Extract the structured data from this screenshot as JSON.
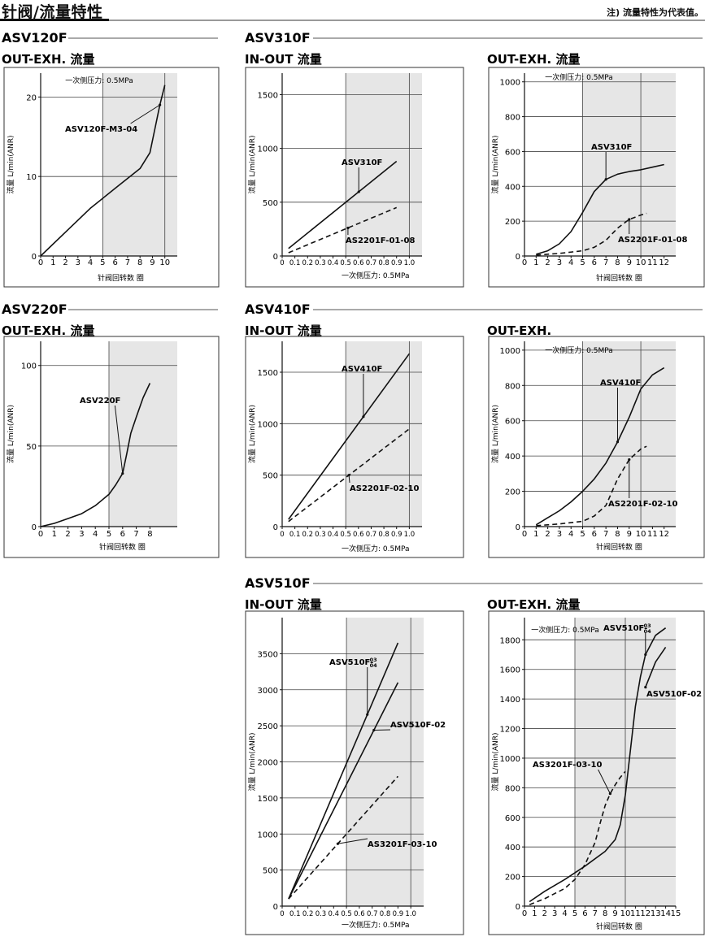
{
  "page": {
    "title": "针阀/流量特性",
    "note": "注) 流量特性为代表值。"
  },
  "chart_data": [
    {
      "type": "line",
      "model": "ASV120F",
      "title": "OUT-EXH. 流量",
      "xlabel": "针阀回转数 圈",
      "ylabel": "流量 L/min(ANR)",
      "pressure_note": "一次侧压力: 0.5MPa",
      "xlim": [
        0,
        11
      ],
      "ylim": [
        0,
        23
      ],
      "xticks": [
        0,
        1,
        2,
        3,
        4,
        5,
        6,
        7,
        8,
        9,
        10
      ],
      "yticks": [
        0,
        10,
        20
      ],
      "grid_x": [
        5,
        10
      ],
      "grid_y": [
        10,
        20
      ],
      "shade_from": 5,
      "series": [
        {
          "name": "ASV120F-M3-04",
          "style": "solid",
          "x": [
            0,
            2,
            4,
            6,
            8,
            8.8,
            9.2,
            9.6,
            10
          ],
          "y": [
            0,
            3,
            6,
            8.5,
            11,
            13,
            16,
            19,
            21.5
          ]
        }
      ]
    },
    {
      "type": "line",
      "model": "ASV310F",
      "title": "IN-OUT 流量",
      "xlabel": "一次侧压力: 0.5MPa",
      "ylabel": "流量 L/min(ANR)",
      "xlim": [
        0,
        1.1
      ],
      "ylim": [
        0,
        1700
      ],
      "xticks": [
        0,
        0.1,
        0.2,
        0.3,
        0.4,
        0.5,
        0.6,
        0.7,
        0.8,
        0.9,
        1.0
      ],
      "yticks": [
        0,
        500,
        1000,
        1500
      ],
      "grid_x": [
        0.5,
        1.0
      ],
      "grid_y": [
        500,
        1000,
        1500
      ],
      "shade_from": 0.5,
      "series": [
        {
          "name": "ASV310F",
          "style": "solid",
          "x": [
            0.05,
            0.9
          ],
          "y": [
            70,
            880
          ]
        },
        {
          "name": "AS2201F-01-08",
          "style": "dashed",
          "x": [
            0.05,
            0.9
          ],
          "y": [
            30,
            450
          ]
        }
      ]
    },
    {
      "type": "line",
      "model": "ASV310F",
      "title": "OUT-EXH. 流量",
      "xlabel": "针阀回转数 圈",
      "ylabel": "流量 L/min(ANR)",
      "pressure_note": "一次侧压力: 0.5MPa",
      "xlim": [
        0,
        13
      ],
      "ylim": [
        0,
        1050
      ],
      "xticks": [
        0,
        1,
        2,
        3,
        4,
        5,
        6,
        7,
        8,
        9,
        10,
        11,
        12
      ],
      "yticks": [
        0,
        200,
        400,
        600,
        800,
        1000
      ],
      "grid_x": [
        5,
        10
      ],
      "grid_y": [
        200,
        400,
        600,
        800,
        1000
      ],
      "shade_from": 5,
      "series": [
        {
          "name": "ASV310F",
          "style": "solid",
          "x": [
            1,
            2,
            3,
            4,
            5,
            6,
            7,
            8,
            9,
            10,
            11,
            12
          ],
          "y": [
            10,
            30,
            70,
            140,
            250,
            370,
            440,
            470,
            485,
            495,
            510,
            525
          ]
        },
        {
          "name": "AS2201F-01-08",
          "style": "dashed",
          "x": [
            1,
            3,
            5,
            6,
            7,
            8,
            9,
            10,
            10.5
          ],
          "y": [
            5,
            15,
            30,
            50,
            90,
            160,
            210,
            235,
            245
          ]
        }
      ]
    },
    {
      "type": "line",
      "model": "ASV220F",
      "title": "OUT-EXH. 流量",
      "xlabel": "针阀回转数 圈",
      "ylabel": "流量 L/min(ANR)",
      "xlim": [
        0,
        10
      ],
      "ylim": [
        0,
        115
      ],
      "xticks": [
        0,
        1,
        2,
        3,
        4,
        5,
        6,
        7,
        8
      ],
      "yticks": [
        0,
        50,
        100
      ],
      "grid_x": [
        5
      ],
      "grid_y": [
        50,
        100
      ],
      "shade_from": 5,
      "series": [
        {
          "name": "ASV220F",
          "style": "solid",
          "x": [
            0,
            1,
            2,
            3,
            4,
            5,
            5.5,
            6,
            6.3,
            6.6,
            7,
            7.5,
            8
          ],
          "y": [
            0,
            2,
            5,
            8,
            13,
            20,
            26,
            33,
            45,
            58,
            68,
            80,
            89
          ]
        }
      ]
    },
    {
      "type": "line",
      "model": "ASV410F",
      "title": "IN-OUT 流量",
      "xlabel": "一次侧压力: 0.5MPa",
      "ylabel": "流量 L/min(ANR)",
      "xlim": [
        0,
        1.1
      ],
      "ylim": [
        0,
        1800
      ],
      "xticks": [
        0,
        0.1,
        0.2,
        0.3,
        0.4,
        0.5,
        0.6,
        0.7,
        0.8,
        0.9,
        1.0
      ],
      "yticks": [
        0,
        500,
        1000,
        1500
      ],
      "grid_x": [
        0.5,
        1.0
      ],
      "grid_y": [
        500,
        1000,
        1500
      ],
      "shade_from": 0.5,
      "series": [
        {
          "name": "ASV410F",
          "style": "solid",
          "x": [
            0.05,
            1.0
          ],
          "y": [
            70,
            1680
          ]
        },
        {
          "name": "AS2201F-02-10",
          "style": "dashed",
          "x": [
            0.05,
            1.0
          ],
          "y": [
            50,
            950
          ]
        }
      ]
    },
    {
      "type": "line",
      "model": "ASV410F",
      "title": "OUT-EXH.",
      "xlabel": "针阀回转数 圈",
      "ylabel": "流量 L/min(ANR)",
      "pressure_note": "一次侧压力: 0.5MPa",
      "xlim": [
        0,
        13
      ],
      "ylim": [
        0,
        1050
      ],
      "xticks": [
        0,
        1,
        2,
        3,
        4,
        5,
        6,
        7,
        8,
        9,
        10,
        11,
        12
      ],
      "yticks": [
        0,
        200,
        400,
        600,
        800,
        1000
      ],
      "grid_x": [
        5,
        10
      ],
      "grid_y": [
        200,
        400,
        600,
        800,
        1000
      ],
      "shade_from": 5,
      "series": [
        {
          "name": "ASV410F",
          "style": "solid",
          "x": [
            1,
            2,
            3,
            4,
            5,
            6,
            7,
            8,
            9,
            10,
            11,
            12
          ],
          "y": [
            10,
            50,
            90,
            140,
            200,
            270,
            360,
            480,
            620,
            780,
            860,
            900
          ]
        },
        {
          "name": "AS2201F-02-10",
          "style": "dashed",
          "x": [
            1,
            3,
            5,
            6,
            7,
            8,
            9,
            10,
            10.5
          ],
          "y": [
            5,
            15,
            30,
            60,
            120,
            270,
            380,
            440,
            455
          ]
        }
      ]
    },
    {
      "type": "line",
      "model": "ASV510F",
      "title": "IN-OUT 流量",
      "xlabel": "一次侧压力: 0.5MPa",
      "ylabel": "流量 L/min(ANR)",
      "xlim": [
        0,
        1.1
      ],
      "ylim": [
        0,
        4000
      ],
      "xticks": [
        0,
        0.1,
        0.2,
        0.3,
        0.4,
        0.5,
        0.6,
        0.7,
        0.8,
        0.9,
        1.0
      ],
      "yticks": [
        0,
        500,
        1000,
        1500,
        2000,
        2500,
        3000,
        3500
      ],
      "grid_x": [
        0.5,
        1.0
      ],
      "grid_y": [
        500,
        1000,
        1500,
        2000,
        2500,
        3000,
        3500
      ],
      "shade_from": 0.5,
      "series": [
        {
          "name": "ASV510F-03/04",
          "label": "ASV510F-",
          "label_stack": [
            "03",
            "04"
          ],
          "style": "solid",
          "x": [
            0.05,
            0.9
          ],
          "y": [
            100,
            3650
          ]
        },
        {
          "name": "ASV510F-02",
          "style": "solid",
          "x": [
            0.05,
            0.9
          ],
          "y": [
            100,
            3100
          ]
        },
        {
          "name": "AS3201F-03-10",
          "style": "dashed",
          "x": [
            0.05,
            0.9
          ],
          "y": [
            100,
            1800
          ]
        }
      ]
    },
    {
      "type": "line",
      "model": "ASV510F",
      "title": "OUT-EXH. 流量",
      "xlabel": "针阀回转数 圈",
      "ylabel": "流量 L/min(ANR)",
      "pressure_note": "一次侧压力: 0.5MPa",
      "xlim": [
        0,
        15
      ],
      "ylim": [
        0,
        1950
      ],
      "xticks": [
        0,
        1,
        2,
        3,
        4,
        5,
        6,
        7,
        8,
        9,
        10,
        11,
        12,
        13,
        14,
        15
      ],
      "yticks": [
        0,
        200,
        400,
        600,
        800,
        1000,
        1200,
        1400,
        1600,
        1800
      ],
      "grid_x": [
        5,
        10
      ],
      "grid_y": [
        200,
        400,
        600,
        800,
        1000,
        1200,
        1400,
        1600,
        1800
      ],
      "shade_from": 5,
      "series": [
        {
          "name": "ASV510F-03/04",
          "label": "ASV510F-",
          "label_stack": [
            "03",
            "04"
          ],
          "style": "solid",
          "x": [
            0.5,
            2,
            4,
            6,
            8,
            9,
            9.5,
            10,
            10.5,
            11,
            11.5,
            12,
            13,
            14
          ],
          "y": [
            30,
            100,
            180,
            270,
            370,
            450,
            550,
            750,
            1050,
            1350,
            1550,
            1700,
            1830,
            1880
          ]
        },
        {
          "name": "ASV510F-02",
          "style": "solid",
          "x": [
            12,
            13,
            14
          ],
          "y": [
            1480,
            1650,
            1750
          ]
        },
        {
          "name": "AS3201F-03-10",
          "style": "dashed",
          "x": [
            0.5,
            2,
            4,
            5,
            6,
            7,
            7.5,
            8,
            8.5,
            9,
            9.5,
            10
          ],
          "y": [
            10,
            50,
            120,
            180,
            280,
            430,
            560,
            680,
            760,
            820,
            870,
            910
          ]
        }
      ]
    }
  ]
}
